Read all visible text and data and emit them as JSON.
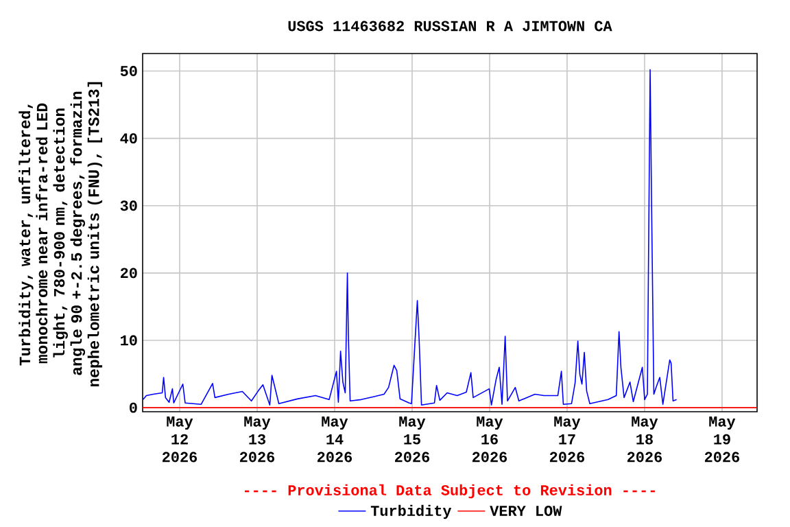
{
  "chart_data": {
    "type": "line",
    "title": "USGS 11463682 RUSSIAN R A JIMTOWN CA",
    "ylabel": "Turbidity, water, unfiltered, monochrome near infra-red LED light, 780-900 nm, detection angle 90 +-2.5 degrees, formazin nephelometric units (FNU), [TS213]",
    "annotations": [
      "---- Provisional Data Subject to Revision ----"
    ],
    "xlim": [
      "2026-05-11T12:32",
      "2026-05-19T10:51"
    ],
    "xticks": [
      {
        "value": "2026-05-12",
        "label": "May 12 2026"
      },
      {
        "value": "2026-05-13",
        "label": "May 13 2026"
      },
      {
        "value": "2026-05-14",
        "label": "May 14 2026"
      },
      {
        "value": "2026-05-15",
        "label": "May 15 2026"
      },
      {
        "value": "2026-05-16",
        "label": "May 16 2026"
      },
      {
        "value": "2026-05-17",
        "label": "May 17 2026"
      },
      {
        "value": "2026-05-18",
        "label": "May 18 2026"
      },
      {
        "value": "2026-05-19",
        "label": "May 19 2026"
      }
    ],
    "ylim": [
      -0.6,
      52.6
    ],
    "yticks": [
      0,
      10,
      20,
      30,
      40,
      50
    ],
    "grid": true,
    "legend": "bottom",
    "marker": "none",
    "line_style": "solid",
    "ref_lines": [
      {
        "axis": "y",
        "value": 0,
        "label": "VERY LOW",
        "color": "#ff0000"
      }
    ],
    "series": [
      {
        "name": "Turbidity",
        "color": "#0000ff",
        "x": [
          "2026-05-11T12:40",
          "2026-05-11T13:41",
          "2026-05-11T15:48",
          "2026-05-11T18:36",
          "2026-05-11T19:02",
          "2026-05-11T19:37",
          "2026-05-11T20:44",
          "2026-05-11T21:45",
          "2026-05-11T22:10",
          "2026-05-12T00:59",
          "2026-05-12T01:42",
          "2026-05-12T06:40",
          "2026-05-12T10:12",
          "2026-05-12T10:55",
          "2026-05-12T15:10",
          "2026-05-12T19:25",
          "2026-05-12T22:13",
          "2026-05-13T00:21",
          "2026-05-13T01:47",
          "2026-05-13T03:55",
          "2026-05-13T04:35",
          "2026-05-13T06:43",
          "2026-05-13T12:25",
          "2026-05-13T18:04",
          "2026-05-13T22:18",
          "2026-05-14T00:34",
          "2026-05-14T01:09",
          "2026-05-14T01:50",
          "2026-05-14T02:33",
          "2026-05-14T03:17",
          "2026-05-14T03:57",
          "2026-05-14T04:15",
          "2026-05-14T04:48",
          "2026-05-14T08:12",
          "2026-05-14T11:46",
          "2026-05-14T15:18",
          "2026-05-14T16:42",
          "2026-05-14T18:24",
          "2026-05-14T19:15",
          "2026-05-14T20:16",
          "2026-05-14T23:05",
          "2026-05-14T23:48",
          "2026-05-15T01:37",
          "2026-05-15T02:13",
          "2026-05-15T02:54",
          "2026-05-15T06:54",
          "2026-05-15T07:34",
          "2026-05-15T08:35",
          "2026-05-15T10:51",
          "2026-05-15T13:57",
          "2026-05-15T16:47",
          "2026-05-15T18:12",
          "2026-05-15T18:55",
          "2026-05-15T23:53",
          "2026-05-16T00:34",
          "2026-05-16T02:01",
          "2026-05-16T02:59",
          "2026-05-16T03:50",
          "2026-05-16T04:49",
          "2026-05-16T05:32",
          "2026-05-16T07:57",
          "2026-05-16T09:04",
          "2026-05-16T14:02",
          "2026-05-16T16:53",
          "2026-05-16T21:08",
          "2026-05-16T22:14",
          "2026-05-16T22:50",
          "2026-05-17T01:23",
          "2026-05-17T02:29",
          "2026-05-17T03:20",
          "2026-05-17T03:56",
          "2026-05-17T04:36",
          "2026-05-17T05:20",
          "2026-05-17T06:03",
          "2026-05-17T07:02",
          "2026-05-17T12:41",
          "2026-05-17T15:14",
          "2026-05-17T16:05",
          "2026-05-17T16:40",
          "2026-05-17T17:39",
          "2026-05-17T19:29",
          "2026-05-17T20:30",
          "2026-05-17T23:18",
          "2026-05-18T00:01",
          "2026-05-18T00:52",
          "2026-05-18T01:43",
          "2026-05-18T02:16",
          "2026-05-18T02:52",
          "2026-05-18T03:33",
          "2026-05-18T04:42",
          "2026-05-18T05:40",
          "2026-05-18T07:48",
          "2026-05-18T08:13",
          "2026-05-18T08:49",
          "2026-05-18T09:55"
        ],
        "values": [
          1.2,
          1.8,
          2.0,
          2.2,
          4.5,
          1.5,
          0.8,
          2.8,
          0.7,
          3.5,
          0.7,
          0.5,
          3.6,
          1.5,
          2.0,
          2.4,
          1.0,
          2.5,
          3.4,
          0.4,
          4.8,
          0.6,
          1.3,
          1.8,
          1.2,
          5.4,
          0.8,
          8.4,
          3.8,
          2.2,
          20,
          10.8,
          1.0,
          1.2,
          1.6,
          2.0,
          3.0,
          6.3,
          5.5,
          1.3,
          0.7,
          0.6,
          15.9,
          9.6,
          0.4,
          0.7,
          3.3,
          1.1,
          2.2,
          1.8,
          2.3,
          5.2,
          1.5,
          2.8,
          0.4,
          4.2,
          6.0,
          0.5,
          10.6,
          1.0,
          3.0,
          1.0,
          2.0,
          1.8,
          1.8,
          5.4,
          0.5,
          0.6,
          3.7,
          9.9,
          5.0,
          3.5,
          8.2,
          2.5,
          0.6,
          1.2,
          1.8,
          11.3,
          6.0,
          1.5,
          3.8,
          0.9,
          6.0,
          1.2,
          2.0,
          50.2,
          26.1,
          2.0,
          3.0,
          4.5,
          0.5,
          7.1,
          6.6,
          1.0,
          1.2
        ]
      }
    ]
  }
}
